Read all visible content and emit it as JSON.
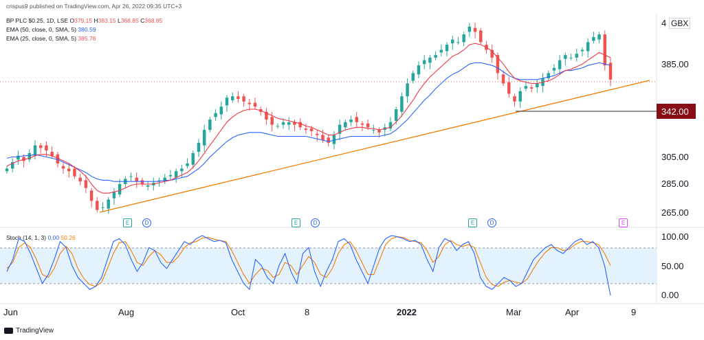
{
  "top_caption": "crispus9 published on TradingView.com, Apr 26, 2022 09:35 UTC+3",
  "symbol": {
    "name": "BP PLC $0.25, 1D, LSE",
    "o_label": "O",
    "o": "379.15",
    "h_label": "H",
    "h": "383.15",
    "l_label": "L",
    "l": "368.85",
    "c_label": "C",
    "c": "368.85"
  },
  "indicators": [
    {
      "label": "EMA (50, close, 0, SMA, 5)",
      "value": "380.59",
      "color": "#2962ff"
    },
    {
      "label": "EMA (25, close, 0, SMA, 5)",
      "value": "385.78",
      "color": "#f23645"
    }
  ],
  "stoch": {
    "label": "Stoch (14, 1, 3)",
    "k": "0.00",
    "d": "50.26",
    "k_color": "#2962ff",
    "d_color": "#f57c00"
  },
  "currency": "GBX",
  "price_marker": "342.00",
  "brand": "TradingView",
  "events": [
    {
      "type": "E",
      "x_date": "Aug"
    },
    {
      "type": "D",
      "x_date": "Aug"
    },
    {
      "type": "E",
      "x_date": "Oct"
    },
    {
      "type": "D",
      "x_date": "Oct"
    },
    {
      "type": "E",
      "x_date": "Feb"
    },
    {
      "type": "D",
      "x_date": "Feb"
    },
    {
      "type": "E",
      "x_date": "Apr"
    }
  ],
  "chart_data": {
    "type": "candlestick",
    "title": "BP PLC $0.25, 1D, LSE",
    "y_ticks": [
      "385.00",
      "342.00",
      "305.00",
      "285.00",
      "265.00"
    ],
    "y_range": [
      255,
      420
    ],
    "x_labels": [
      "Jun",
      "Aug",
      "Oct",
      "8",
      "2022",
      "Mar",
      "Apr",
      "9"
    ],
    "horizontal_level": 342,
    "trendline": {
      "from": {
        "date": "Jul 2021",
        "price": 265
      },
      "to": {
        "date": "Apr 2022",
        "price": 372
      }
    },
    "close_series": [
      300,
      305,
      310,
      306,
      312,
      318,
      316,
      314,
      310,
      304,
      300,
      298,
      294,
      290,
      285,
      275,
      268,
      270,
      276,
      282,
      288,
      292,
      294,
      290,
      288,
      287,
      289,
      291,
      293,
      295,
      298,
      300,
      304,
      312,
      320,
      330,
      338,
      343,
      348,
      355,
      356,
      354,
      352,
      350,
      348,
      344,
      338,
      334,
      333,
      336,
      336,
      334,
      332,
      330,
      329,
      326,
      322,
      320,
      326,
      334,
      336,
      338,
      336,
      334,
      332,
      330,
      328,
      332,
      336,
      346,
      356,
      366,
      374,
      380,
      384,
      386,
      388,
      392,
      396,
      400,
      398,
      404,
      410,
      406,
      398,
      392,
      386,
      374,
      366,
      358,
      352,
      360,
      364,
      362,
      366,
      370,
      374,
      378,
      384,
      388,
      386,
      389,
      392,
      398,
      402,
      404,
      380,
      369
    ],
    "ema50_series": [
      308,
      309,
      309,
      310,
      310,
      311,
      310,
      309,
      308,
      307,
      305,
      303,
      301,
      299,
      297,
      294,
      292,
      291,
      291,
      290,
      290,
      290,
      290,
      290,
      290,
      290,
      290,
      290,
      291,
      291,
      292,
      293,
      294,
      297,
      300,
      304,
      309,
      313,
      317,
      321,
      324,
      326,
      327,
      328,
      328,
      328,
      327,
      326,
      325,
      325,
      325,
      325,
      325,
      325,
      324,
      323,
      322,
      321,
      322,
      323,
      324,
      325,
      325,
      325,
      325,
      325,
      325,
      326,
      327,
      330,
      334,
      338,
      343,
      348,
      353,
      357,
      362,
      366,
      370,
      373,
      375,
      378,
      381,
      382,
      382,
      381,
      380,
      378,
      375,
      372,
      370,
      369,
      369,
      369,
      369,
      370,
      371,
      372,
      374,
      376,
      376,
      377,
      378,
      380,
      381,
      382,
      381,
      380
    ],
    "ema25_series": [
      302,
      304,
      306,
      307,
      308,
      310,
      311,
      311,
      310,
      308,
      306,
      304,
      301,
      298,
      294,
      288,
      283,
      281,
      281,
      282,
      283,
      285,
      287,
      288,
      288,
      288,
      288,
      289,
      290,
      291,
      293,
      295,
      297,
      301,
      306,
      312,
      318,
      324,
      330,
      336,
      340,
      343,
      345,
      346,
      346,
      345,
      343,
      341,
      339,
      338,
      337,
      336,
      335,
      333,
      332,
      330,
      328,
      326,
      326,
      328,
      330,
      331,
      332,
      332,
      331,
      331,
      330,
      331,
      332,
      336,
      341,
      347,
      353,
      360,
      366,
      371,
      375,
      379,
      383,
      387,
      389,
      392,
      396,
      397,
      396,
      394,
      391,
      386,
      381,
      375,
      370,
      368,
      367,
      366,
      366,
      367,
      368,
      370,
      373,
      376,
      377,
      379,
      381,
      384,
      387,
      390,
      388,
      386
    ],
    "stoch_k": [
      40,
      60,
      95,
      90,
      70,
      45,
      20,
      35,
      60,
      90,
      80,
      50,
      30,
      20,
      10,
      15,
      30,
      60,
      90,
      95,
      85,
      60,
      40,
      55,
      80,
      75,
      55,
      45,
      60,
      75,
      90,
      85,
      95,
      100,
      95,
      90,
      92,
      88,
      60,
      40,
      20,
      10,
      60,
      50,
      30,
      20,
      50,
      70,
      40,
      20,
      70,
      80,
      40,
      15,
      40,
      60,
      90,
      95,
      85,
      60,
      40,
      20,
      50,
      80,
      95,
      100,
      98,
      95,
      90,
      92,
      85,
      60,
      40,
      80,
      95,
      90,
      75,
      85,
      90,
      70,
      30,
      15,
      10,
      20,
      30,
      25,
      15,
      20,
      40,
      60,
      70,
      80,
      85,
      75,
      70,
      80,
      90,
      95,
      85,
      90,
      80,
      50,
      0
    ],
    "stoch_d": [
      45,
      55,
      80,
      88,
      80,
      60,
      35,
      30,
      45,
      70,
      82,
      70,
      45,
      28,
      18,
      15,
      22,
      45,
      70,
      88,
      90,
      75,
      55,
      50,
      65,
      75,
      68,
      55,
      55,
      65,
      80,
      88,
      90,
      96,
      97,
      94,
      92,
      90,
      75,
      55,
      35,
      20,
      35,
      45,
      42,
      30,
      35,
      55,
      50,
      35,
      50,
      65,
      55,
      35,
      30,
      45,
      70,
      85,
      90,
      75,
      55,
      35,
      35,
      60,
      85,
      95,
      98,
      97,
      92,
      90,
      88,
      75,
      55,
      65,
      85,
      92,
      85,
      82,
      85,
      80,
      55,
      30,
      18,
      15,
      22,
      25,
      22,
      20,
      28,
      45,
      60,
      72,
      80,
      80,
      75,
      77,
      85,
      90,
      90,
      88,
      85,
      70,
      50
    ]
  }
}
